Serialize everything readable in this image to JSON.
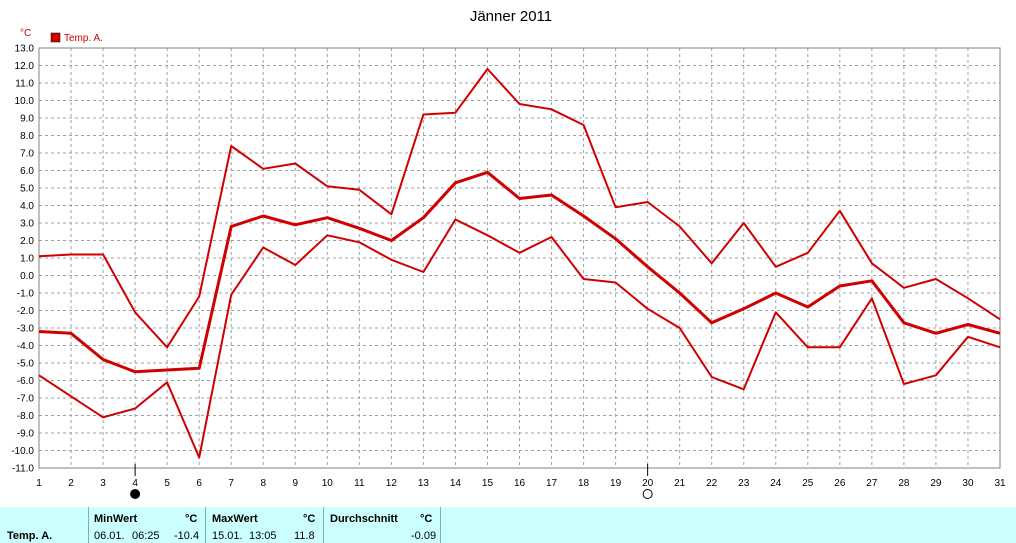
{
  "chart_data": {
    "type": "line",
    "title": "Jänner 2011",
    "unit": "°C",
    "legend": "Temp. A.",
    "legend_color": "#d00000",
    "x": [
      1,
      2,
      3,
      4,
      5,
      6,
      7,
      8,
      9,
      10,
      11,
      12,
      13,
      14,
      15,
      16,
      17,
      18,
      19,
      20,
      21,
      22,
      23,
      24,
      25,
      26,
      27,
      28,
      29,
      30,
      31
    ],
    "ylim": [
      -11.0,
      13.0
    ],
    "yticks": [
      "13.0",
      "12.0",
      "11.0",
      "10.0",
      "9.0",
      "8.0",
      "7.0",
      "6.0",
      "5.0",
      "4.0",
      "3.0",
      "2.0",
      "1.0",
      "0.0",
      "-1.0",
      "-2.0",
      "-3.0",
      "-4.0",
      "-5.0",
      "-6.0",
      "-7.0",
      "-8.0",
      "-9.0",
      "-10.0",
      "-11.0"
    ],
    "grid": true,
    "series": [
      {
        "role": "max",
        "values": [
          1.1,
          1.2,
          1.2,
          -2.1,
          -4.1,
          -1.2,
          7.4,
          6.1,
          6.4,
          5.1,
          4.9,
          3.5,
          9.2,
          9.3,
          11.8,
          9.8,
          9.5,
          8.6,
          3.9,
          4.2,
          2.8,
          0.7,
          3.0,
          0.5,
          1.3,
          3.7,
          0.7,
          -0.7,
          -0.2,
          -1.3,
          -2.5
        ]
      },
      {
        "role": "mean",
        "values": [
          -3.2,
          -3.3,
          -4.8,
          -5.5,
          -5.4,
          -5.3,
          2.8,
          3.4,
          2.9,
          3.3,
          2.7,
          2.0,
          3.3,
          5.3,
          5.9,
          4.4,
          4.6,
          3.4,
          2.1,
          0.5,
          -1.0,
          -2.7,
          -1.9,
          -1.0,
          -1.8,
          -0.6,
          -0.3,
          -2.7,
          -3.3,
          -2.8,
          -3.3
        ]
      },
      {
        "role": "min",
        "values": [
          -5.7,
          -6.9,
          -8.1,
          -7.6,
          -6.1,
          -10.4,
          -1.1,
          1.6,
          0.6,
          2.3,
          1.9,
          0.9,
          0.2,
          3.2,
          2.3,
          1.3,
          2.2,
          -0.2,
          -0.4,
          -1.9,
          -3.0,
          -5.8,
          -6.5,
          -2.1,
          -4.1,
          -4.1,
          -1.3,
          -6.2,
          -5.7,
          -3.5,
          -4.1
        ]
      }
    ],
    "markers": [
      {
        "x": 4,
        "symbol": "new-moon"
      },
      {
        "x": 20,
        "symbol": "full-moon"
      }
    ]
  },
  "footer": {
    "station": "Temp. A.",
    "min_label": "MinWert",
    "min_unit": "°C",
    "min_date": "06.01.",
    "min_time": "06:25",
    "min_value": "-10.4",
    "max_label": "MaxWert",
    "max_unit": "°C",
    "max_date": "15.01.",
    "max_time": "13:05",
    "max_value": "11.8",
    "avg_label": "Durchschnitt",
    "avg_unit": "°C",
    "avg_value": "-0.09"
  }
}
